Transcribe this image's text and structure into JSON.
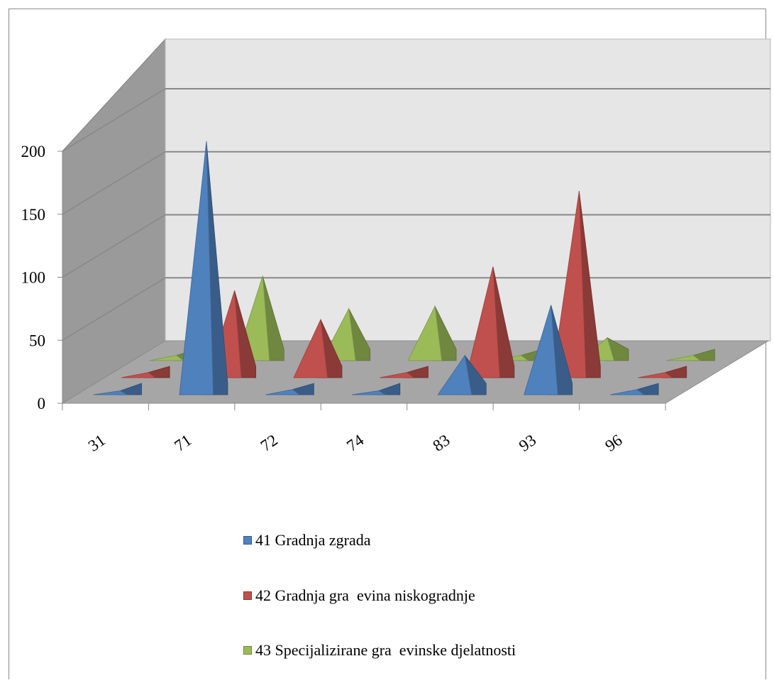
{
  "chart_data": {
    "type": "bar",
    "style": "3d-pyramid",
    "categories": [
      "31",
      "71",
      "72",
      "74",
      "83",
      "93",
      "96"
    ],
    "ylim": [
      0,
      200
    ],
    "yticks": [
      "0",
      "50",
      "100",
      "150",
      "200"
    ],
    "gridlines": true,
    "legend_position": "bottom",
    "series": [
      {
        "name": "41 Gradnja zgrada",
        "color": "#4f81bd",
        "values": [
          2,
          200,
          3,
          2,
          30,
          70,
          3
        ]
      },
      {
        "name": "42 Gradnja gra  evina niskogradnje",
        "color": "#c0504d",
        "values": [
          3,
          68,
          45,
          3,
          87,
          147,
          3
        ]
      },
      {
        "name": "43 Specijalizirane gra  evinske djelatnosti",
        "color": "#9bbb59",
        "values": [
          3,
          66,
          40,
          42,
          3,
          17,
          3
        ]
      }
    ]
  }
}
